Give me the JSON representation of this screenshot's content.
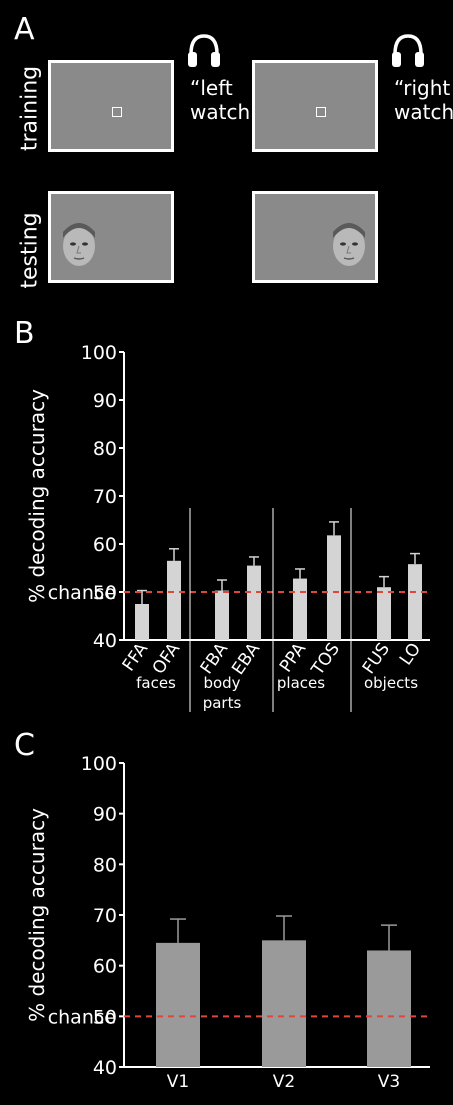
{
  "panel_a": {
    "letter": "A",
    "row_training": "training",
    "row_testing": "testing",
    "cue_left": [
      "“left",
      "watch"
    ],
    "cue_right": [
      "“right",
      "watch”"
    ],
    "icon": "headphones-icon"
  },
  "chart_data": [
    {
      "panel": "B",
      "type": "bar",
      "ylabel": "% decoding accuracy",
      "ylim": [
        40,
        100
      ],
      "yticks": [
        40,
        50,
        60,
        70,
        80,
        90,
        100
      ],
      "chance_label": "chance",
      "chance_value": 50,
      "categories": [
        "FFA",
        "OFA",
        "FBA",
        "EBA",
        "PPA",
        "TOS",
        "FUS",
        "LO"
      ],
      "values": [
        47.5,
        56.5,
        50.3,
        55.5,
        52.8,
        61.8,
        51.0,
        55.8
      ],
      "errors": [
        2.8,
        2.5,
        2.2,
        1.8,
        2.0,
        2.8,
        2.2,
        2.2
      ],
      "groups": [
        {
          "label": [
            "faces"
          ],
          "members": [
            "FFA",
            "OFA"
          ]
        },
        {
          "label": [
            "body",
            "parts"
          ],
          "members": [
            "FBA",
            "EBA"
          ]
        },
        {
          "label": [
            "places"
          ],
          "members": [
            "PPA",
            "TOS"
          ]
        },
        {
          "label": [
            "objects"
          ],
          "members": [
            "FUS",
            "LO"
          ]
        }
      ],
      "bar_color": "#d4d4d4",
      "chance_color": "#e0463a"
    },
    {
      "panel": "C",
      "type": "bar",
      "ylabel": "% decoding accuracy",
      "ylim": [
        40,
        100
      ],
      "yticks": [
        40,
        50,
        60,
        70,
        80,
        90,
        100
      ],
      "chance_label": "chance",
      "chance_value": 50,
      "categories": [
        "V1",
        "V2",
        "V3"
      ],
      "values": [
        64.5,
        65.0,
        63.0
      ],
      "errors": [
        4.7,
        4.8,
        5.0
      ],
      "bar_color": "#9a9a9a",
      "chance_color": "#e0463a"
    }
  ]
}
